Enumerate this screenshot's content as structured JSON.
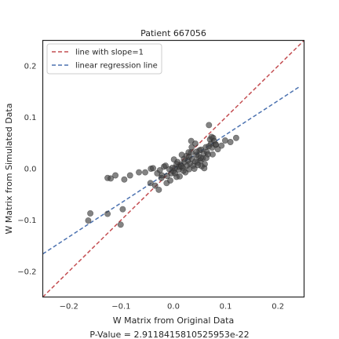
{
  "chart_data": {
    "type": "scatter",
    "title": "Patient 667056",
    "xlabel": "W Matrix from Original Data",
    "ylabel": "W Matrix from Simulated Data",
    "xlim": [
      -0.25,
      0.25
    ],
    "ylim": [
      -0.25,
      0.25
    ],
    "x_ticks": [
      -0.2,
      -0.1,
      0.0,
      0.1,
      0.2
    ],
    "y_ticks": [
      -0.2,
      -0.1,
      0.0,
      0.1,
      0.2
    ],
    "x_tick_labels": [
      "−0.2",
      "−0.1",
      "0.0",
      "0.1",
      "0.2"
    ],
    "y_tick_labels": [
      "−0.2",
      "−0.1",
      "0.0",
      "0.1",
      "0.2"
    ],
    "grid": false,
    "legend": {
      "placement": "top-left",
      "entries": [
        {
          "label": "line with slope=1",
          "color": "#c44e52",
          "style": "dashed"
        },
        {
          "label": "linear regression line",
          "color": "#4c72b0",
          "style": "dashed"
        }
      ]
    },
    "lines": [
      {
        "name": "line with slope=1",
        "color": "#c44e52",
        "points": [
          [
            -0.25,
            -0.25
          ],
          [
            0.25,
            0.25
          ]
        ]
      },
      {
        "name": "linear regression line",
        "color": "#4c72b0",
        "points": [
          [
            -0.25,
            -0.166
          ],
          [
            0.24,
            0.159
          ]
        ]
      }
    ],
    "scatter_color": "#404040",
    "points": [
      [
        -0.163,
        -0.101
      ],
      [
        -0.159,
        -0.087
      ],
      [
        -0.126,
        -0.088
      ],
      [
        -0.101,
        -0.109
      ],
      [
        -0.097,
        -0.079
      ],
      [
        -0.126,
        -0.018
      ],
      [
        -0.12,
        -0.019
      ],
      [
        -0.111,
        -0.013
      ],
      [
        -0.094,
        -0.021
      ],
      [
        -0.083,
        -0.013
      ],
      [
        -0.066,
        -0.007
      ],
      [
        -0.054,
        -0.007
      ],
      [
        -0.043,
        0.0
      ],
      [
        -0.039,
        0.001
      ],
      [
        -0.026,
        -0.003
      ],
      [
        -0.018,
        0.004
      ],
      [
        -0.022,
        -0.013
      ],
      [
        -0.035,
        -0.033
      ],
      [
        -0.028,
        -0.041
      ],
      [
        -0.023,
        -0.018
      ],
      [
        -0.013,
        -0.028
      ],
      [
        -0.006,
        -0.023
      ],
      [
        -0.012,
        -0.014
      ],
      [
        -0.004,
        -0.009
      ],
      [
        0.0,
        -0.005
      ],
      [
        0.003,
        -0.009
      ],
      [
        0.006,
        -0.016
      ],
      [
        0.01,
        -0.002
      ],
      [
        0.011,
        0.004
      ],
      [
        0.014,
        0.008
      ],
      [
        0.018,
        0.002
      ],
      [
        0.021,
        0.013
      ],
      [
        0.023,
        -0.007
      ],
      [
        0.026,
        0.006
      ],
      [
        0.028,
        0.016
      ],
      [
        0.03,
        0.023
      ],
      [
        0.032,
        0.01
      ],
      [
        0.034,
        0.032
      ],
      [
        0.036,
        0.019
      ],
      [
        0.038,
        0.006
      ],
      [
        0.04,
        0.0
      ],
      [
        0.042,
        0.014
      ],
      [
        0.044,
        0.027
      ],
      [
        0.046,
        0.012
      ],
      [
        0.048,
        0.024
      ],
      [
        0.05,
        0.036
      ],
      [
        0.052,
        0.016
      ],
      [
        0.054,
        0.005
      ],
      [
        0.056,
        0.02
      ],
      [
        0.058,
        0.03
      ],
      [
        0.06,
        0.009
      ],
      [
        0.062,
        0.042
      ],
      [
        0.064,
        0.033
      ],
      [
        0.066,
        0.028
      ],
      [
        0.068,
        0.044
      ],
      [
        0.07,
        0.057
      ],
      [
        0.072,
        0.049
      ],
      [
        0.074,
        0.041
      ],
      [
        0.076,
        0.06
      ],
      [
        0.078,
        0.054
      ],
      [
        0.081,
        0.047
      ],
      [
        0.085,
        0.038
      ],
      [
        0.092,
        0.045
      ],
      [
        0.099,
        0.055
      ],
      [
        0.068,
        0.085
      ],
      [
        0.073,
        0.062
      ],
      [
        0.081,
        0.047
      ],
      [
        0.109,
        0.052
      ],
      [
        0.12,
        0.06
      ],
      [
        0.003,
        0.001
      ],
      [
        -0.002,
        0.002
      ],
      [
        0.006,
        0.009
      ],
      [
        -0.008,
        -0.001
      ],
      [
        0.015,
        0.005
      ],
      [
        0.019,
        -0.004
      ],
      [
        0.044,
        0.033
      ],
      [
        0.052,
        0.021
      ],
      [
        0.047,
        0.007
      ],
      [
        0.059,
        0.001
      ],
      [
        0.035,
        0.042
      ],
      [
        0.001,
        0.018
      ],
      [
        0.02,
        0.019
      ],
      [
        0.025,
        0.025
      ],
      [
        -0.015,
        0.006
      ],
      [
        0.034,
        0.054
      ],
      [
        0.042,
        0.049
      ],
      [
        0.029,
        0.032
      ],
      [
        0.016,
        0.027
      ],
      [
        0.008,
        0.013
      ],
      [
        0.063,
        0.021
      ],
      [
        0.075,
        0.028
      ],
      [
        -0.031,
        -0.009
      ],
      [
        -0.044,
        -0.028
      ],
      [
        0.012,
        -0.015
      ],
      [
        0.03,
        -0.001
      ],
      [
        0.053,
        0.037
      ]
    ],
    "annotation": "P-Value = 2.9118415810525953e-22"
  }
}
